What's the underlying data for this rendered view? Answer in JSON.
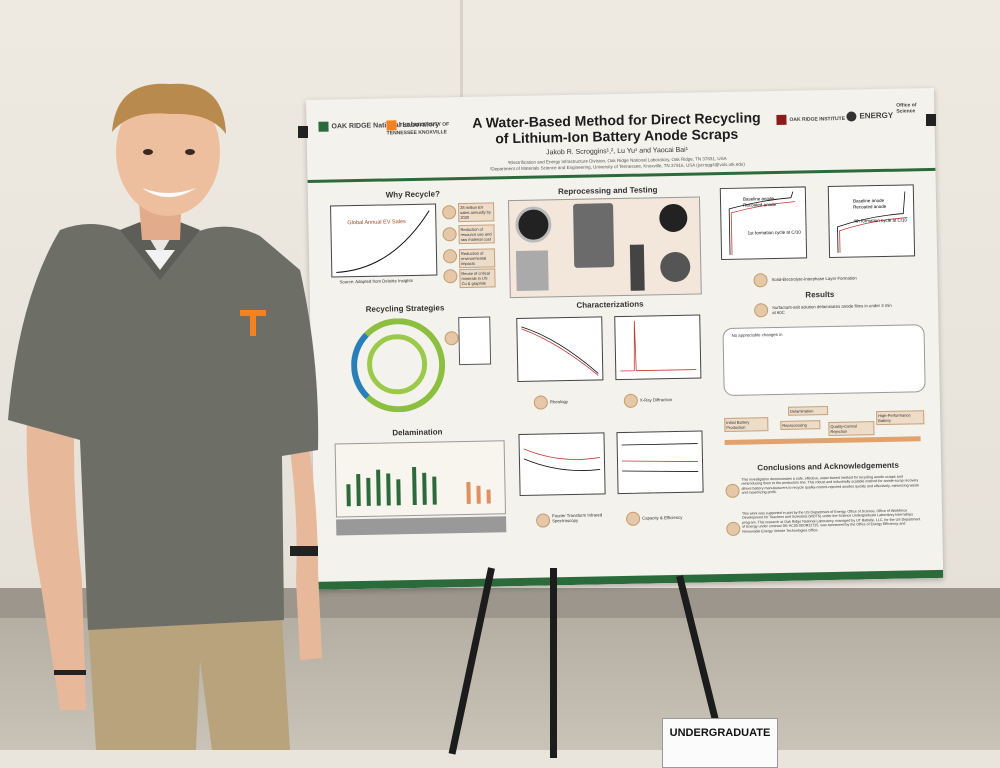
{
  "poster": {
    "title_line1": "A Water-Based Method for Direct Recycling",
    "title_line2": "of Lithium-Ion Battery Anode Scraps",
    "authors": "Jakob R. Scroggins¹,², Lu Yu¹ and Yaocai Bai¹",
    "affil1": "¹Electrification and Energy Infrastructure Division, Oak Ridge National Laboratory, Oak Ridge, TN 37831, USA",
    "affil2": "²Department of Materials Science and Engineering, University of Tennessee, Knoxville, TN 37916, USA (jscrogg4@vols.utk.edu)",
    "logos": {
      "ornl": "OAK RIDGE National Laboratory",
      "ut": "THE UNIVERSITY OF TENNESSEE KNOXVILLE",
      "orise": "OAK RIDGE INSTITUTE",
      "doe": "ENERGY",
      "office": "Office of Science"
    },
    "sections": {
      "why": "Why Recycle?",
      "reprocess": "Reprocessing and Testing",
      "strategies": "Recycling Strategies",
      "characterizations": "Characterizations",
      "results": "Results",
      "delamination": "Delamination",
      "conclusions": "Conclusions and Acknowledgements"
    },
    "why_chart_label": "Global Annual EV Sales",
    "why_source": "Source: Adapted from Deloitte Insights",
    "why_tags": [
      "28 million EV sales annually by 2030",
      "Reduction of resource use and raw material cost",
      "Reduction of environmental impacts",
      "Reuse of critical minerals in US Cu & graphite"
    ],
    "sei_label": "Solid-Electrolyte-Interphase Layer Formation",
    "results_text": "Surfactant-salt solution delaminates anode films in under 3 min at 60C",
    "no_change": "No appreciable changes in",
    "rheology": "Rheology",
    "xrd": "X-Ray Diffraction",
    "ftir": "Fourier Transform Infrared Spectroscopy",
    "capacity": "Capacity & Efficiency",
    "legend_baseline": "Baseline anode",
    "legend_recoated": "Recoated anode",
    "formation1": "1st formation cycle at C/10",
    "formation4": "4th formation cycle at C/10",
    "flow": [
      "Initial Battery Production",
      "Delamination",
      "Reprocessing",
      "Quality-Control Rejection",
      "High-Performance Battery"
    ],
    "conclusion_text": "This investigation demonstrates a safe, effective, water-based method for recycling anode scraps and reintroducing them to the production line. This robust and industrially scalable method for anode-scrap recovery allows battery manufacturers to recycle quality-control-rejected anodes quickly and effectively, minimizing waste and maximizing profit.",
    "ack_text": "This work was supported in part by the US Department of Energy, Office of Science, Office of Workforce Development for Teachers and Scientists (WDTS) under the Science Undergraduate Laboratory Internships program. This research at Oak Ridge National Laboratory, managed by UT Battelle, LLC, for the US Department of Energy under contract DE-AC05-00OR22725, was sponsored by the Office of Energy Efficiency and Renewable Energy Vehicle Technologies Office."
  },
  "sign_text": "UNDERGRADUATE",
  "colors": {
    "poster_green": "#2b6a3a",
    "ut_orange": "#f58220",
    "shirt_gray": "#6d6e66",
    "pants_khaki": "#b8a37d"
  }
}
